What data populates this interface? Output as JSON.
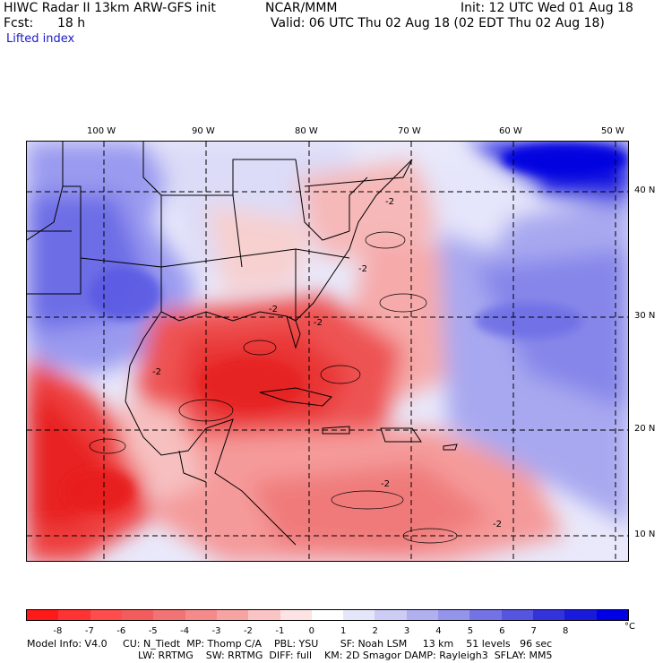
{
  "header": {
    "model_line": "HIWC Radar II 13km ARW-GFS init",
    "org": "NCAR/MMM",
    "init": "Init: 12 UTC Wed 01 Aug 18",
    "fcst_label": "Fcst:",
    "fcst_value": "18 h",
    "valid": "Valid: 06 UTC Thu 02 Aug 18 (02 EDT Thu 02 Aug 18)",
    "field": "Lifted index"
  },
  "lon_labels": [
    "100 W",
    "90 W",
    "80 W",
    "70 W",
    "60 W",
    "50 W"
  ],
  "lat_labels": [
    "40 N",
    "30 N",
    "20 N",
    "10 N"
  ],
  "colorbar": {
    "ticks": [
      "-8",
      "-7",
      "-6",
      "-5",
      "-4",
      "-3",
      "-2",
      "-1",
      "0",
      "1",
      "2",
      "3",
      "4",
      "5",
      "6",
      "7",
      "8"
    ],
    "unit": "°C",
    "colors": [
      "#ff1a1a",
      "#ff3333",
      "#ff4d4d",
      "#f25c5c",
      "#f27373",
      "#f58a8a",
      "#f7a3a3",
      "#fac4c4",
      "#fde3e3",
      "#ffffff",
      "#e6e6fa",
      "#ccccf5",
      "#b0b0f0",
      "#9494eb",
      "#7373e6",
      "#5555e0",
      "#3333dd",
      "#1a1add",
      "#0000e6"
    ]
  },
  "footer": {
    "line1": "Model Info: V4.0     CU: N_Tiedt  MP: Thomp C/A    PBL: YSU       SF: Noah LSM     13 km    51 levels   96 sec",
    "line2": "LW: RRTMG    SW: RRTMG  DIFF: full    KM: 2D Smagor DAMP: Rayleigh3  SFLAY: MM5"
  },
  "contour_labels": [
    "-2",
    "-2",
    "-2",
    "-2",
    "-2",
    "-2",
    "-2"
  ]
}
